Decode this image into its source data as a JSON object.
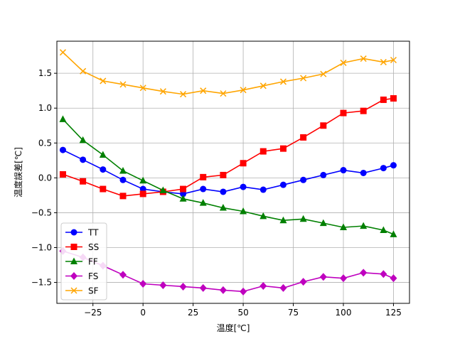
{
  "chart_data": {
    "type": "line",
    "title": "",
    "xlabel": "温度[℃]",
    "ylabel": "温度誤差[℃]",
    "xlim": [
      -43,
      133
    ],
    "ylim": [
      -1.8,
      1.96
    ],
    "xticks": [
      -25,
      0,
      25,
      50,
      75,
      100,
      125
    ],
    "yticks": [
      -1.5,
      -1.0,
      -0.5,
      0.0,
      0.5,
      1.0,
      1.5
    ],
    "grid": true,
    "legend_position": "lower-left",
    "x": [
      -40,
      -30,
      -20,
      -10,
      0,
      10,
      20,
      30,
      40,
      50,
      60,
      70,
      80,
      90,
      100,
      110,
      120,
      125
    ],
    "series": [
      {
        "name": "TT",
        "color": "#0000ff",
        "marker": "circle",
        "values": [
          0.4,
          0.26,
          0.12,
          -0.03,
          -0.16,
          -0.2,
          -0.23,
          -0.16,
          -0.2,
          -0.13,
          -0.17,
          -0.1,
          -0.03,
          0.04,
          0.11,
          0.07,
          0.14,
          0.18
        ]
      },
      {
        "name": "SS",
        "color": "#ff0000",
        "marker": "square",
        "values": [
          0.05,
          -0.05,
          -0.16,
          -0.26,
          -0.23,
          -0.2,
          -0.16,
          0.01,
          0.04,
          0.21,
          0.38,
          0.42,
          0.58,
          0.75,
          0.93,
          0.96,
          1.12,
          1.14
        ]
      },
      {
        "name": "FF",
        "color": "#008000",
        "marker": "triangle",
        "values": [
          0.84,
          0.54,
          0.33,
          0.1,
          -0.04,
          -0.18,
          -0.3,
          -0.36,
          -0.43,
          -0.48,
          -0.55,
          -0.61,
          -0.59,
          -0.65,
          -0.71,
          -0.69,
          -0.75,
          -0.81
        ]
      },
      {
        "name": "FS",
        "color": "#bf00bf",
        "marker": "diamond",
        "values": [
          -1.05,
          -1.14,
          -1.26,
          -1.39,
          -1.52,
          -1.54,
          -1.56,
          -1.58,
          -1.61,
          -1.63,
          -1.55,
          -1.58,
          -1.49,
          -1.42,
          -1.44,
          -1.36,
          -1.38,
          -1.44
        ]
      },
      {
        "name": "SF",
        "color": "#ffa500",
        "marker": "x",
        "values": [
          1.8,
          1.53,
          1.39,
          1.34,
          1.29,
          1.24,
          1.2,
          1.25,
          1.21,
          1.26,
          1.32,
          1.38,
          1.43,
          1.49,
          1.65,
          1.71,
          1.66,
          1.69
        ]
      }
    ]
  }
}
